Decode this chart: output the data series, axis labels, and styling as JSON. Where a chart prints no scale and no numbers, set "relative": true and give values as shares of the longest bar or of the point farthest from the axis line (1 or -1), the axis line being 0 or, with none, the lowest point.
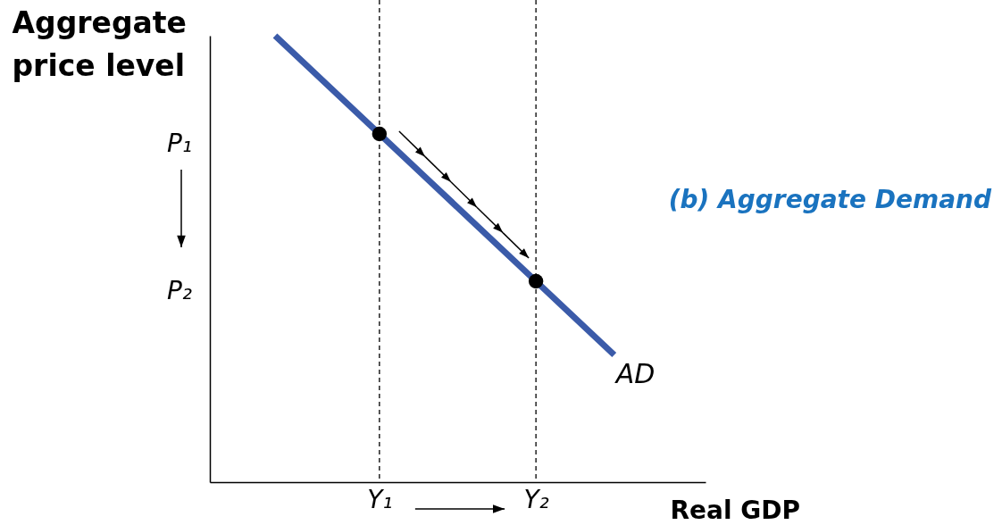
{
  "chart_data": {
    "type": "line",
    "relative": true,
    "xlabel": "Real GDP",
    "ylabel": "Aggregate\nprice level",
    "annotations": [
      "(b) Aggregate Demand",
      "P₁",
      "P₂"
    ],
    "categories": [
      null,
      null,
      null,
      null,
      null,
      null,
      "Y₁",
      null,
      null,
      null,
      null,
      null,
      "Y₂",
      null,
      null,
      null,
      null,
      null,
      null
    ],
    "series": [
      {
        "name": "AD",
        "color": "#3b5ba9",
        "values": [
          null,
          null,
          1.0,
          0.945,
          0.89,
          0.835,
          0.78,
          0.725,
          0.67,
          0.615,
          0.56,
          0.505,
          0.45,
          0.395,
          0.34,
          0.285,
          null,
          null,
          null
        ]
      },
      {
        "type": "scatter",
        "color": "#000000",
        "marker": "circle",
        "values": [
          null,
          null,
          null,
          null,
          null,
          null,
          0.78,
          null,
          null,
          null,
          null,
          null,
          0.45,
          null,
          null,
          null,
          null,
          null,
          null
        ]
      }
    ],
    "ref_lines": [
      {
        "axis": "x",
        "value": "Y₁",
        "color": "#000000",
        "line_style": "dashed"
      },
      {
        "axis": "x",
        "value": "Y₂",
        "color": "#000000",
        "line_style": "dashed"
      }
    ]
  }
}
